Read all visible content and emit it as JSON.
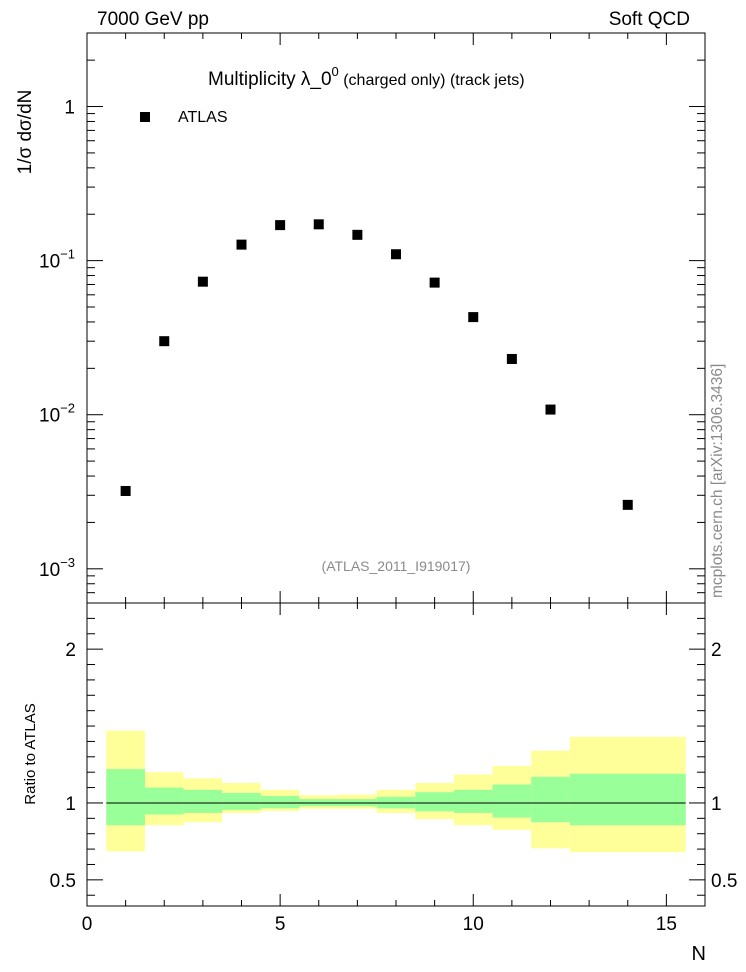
{
  "header": {
    "left": "7000 GeV pp",
    "right": "Soft QCD"
  },
  "watermark": "mcplots.cern.ch [arXiv:1306.3436]",
  "chart_data": [
    {
      "type": "scatter",
      "title_main": "Multiplicity  λ_0",
      "title_sup": "0",
      "title_suffix": " (charged only) (track jets)",
      "ylabel": "1/σ dσ/dN",
      "analysis": "(ATLAS_2011_I919017)",
      "yscale": "log",
      "xlim": [
        0,
        16
      ],
      "ylim": [
        0.0006,
        3
      ],
      "yticks": [
        {
          "value": 0.001,
          "base": "10",
          "exp": "−3"
        },
        {
          "value": 0.01,
          "base": "10",
          "exp": "−2"
        },
        {
          "value": 0.1,
          "base": "10",
          "exp": "−1"
        },
        {
          "value": 1,
          "base": "1",
          "exp": ""
        }
      ],
      "legend": {
        "placement": "top-left",
        "entry": "ATLAS",
        "marker": "square",
        "color": "#000000"
      },
      "series": [
        {
          "name": "ATLAS",
          "x": [
            1,
            2,
            3,
            4,
            5,
            6,
            7,
            8,
            9,
            10,
            11,
            12,
            14
          ],
          "y": [
            0.0032,
            0.03,
            0.073,
            0.127,
            0.17,
            0.172,
            0.147,
            0.11,
            0.072,
            0.043,
            0.023,
            0.0108,
            0.0026
          ]
        }
      ]
    },
    {
      "type": "area",
      "ylabel": "Ratio to ATLAS",
      "xlabel": "N",
      "xlim": [
        0,
        16
      ],
      "ylim": [
        0.33,
        2.3
      ],
      "xticks": [
        "0",
        "5",
        "10",
        "15"
      ],
      "xtick_values": [
        0,
        5,
        10,
        15
      ],
      "yticks": [
        "0.5",
        "1",
        "2"
      ],
      "ytick_values": [
        0.5,
        1,
        2
      ],
      "reference_line": 1,
      "bands": {
        "bins": [
          [
            0.5,
            1.5
          ],
          [
            1.5,
            2.5
          ],
          [
            2.5,
            3.5
          ],
          [
            3.5,
            4.5
          ],
          [
            4.5,
            5.5
          ],
          [
            5.5,
            6.5
          ],
          [
            6.5,
            7.5
          ],
          [
            7.5,
            8.5
          ],
          [
            8.5,
            9.5
          ],
          [
            9.5,
            10.5
          ],
          [
            10.5,
            11.5
          ],
          [
            11.5,
            12.5
          ],
          [
            12.5,
            15.5
          ]
        ],
        "stat": {
          "color": "#99ff99",
          "low": [
            0.855,
            0.925,
            0.935,
            0.955,
            0.965,
            0.978,
            0.978,
            0.965,
            0.945,
            0.935,
            0.905,
            0.875,
            0.855
          ],
          "high": [
            1.22,
            1.1,
            1.085,
            1.065,
            1.045,
            1.025,
            1.025,
            1.04,
            1.07,
            1.085,
            1.12,
            1.17,
            1.19
          ]
        },
        "syst": {
          "color": "#ffff99",
          "low": [
            0.685,
            0.855,
            0.875,
            0.935,
            0.948,
            0.962,
            0.962,
            0.935,
            0.895,
            0.855,
            0.825,
            0.705,
            0.68
          ],
          "high": [
            1.47,
            1.2,
            1.16,
            1.13,
            1.085,
            1.05,
            1.055,
            1.085,
            1.13,
            1.185,
            1.24,
            1.34,
            1.43
          ]
        }
      }
    }
  ]
}
